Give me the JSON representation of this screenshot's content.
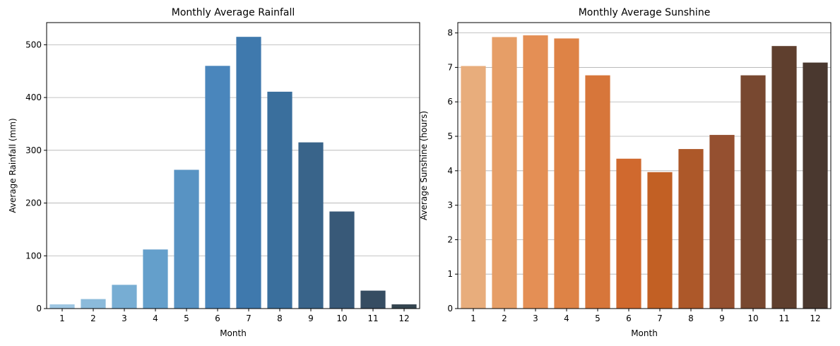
{
  "chart_data": [
    {
      "type": "bar",
      "title": "Monthly Average Rainfall",
      "xlabel": "Month",
      "ylabel": "Average Rainfall (mm)",
      "categories": [
        "1",
        "2",
        "3",
        "4",
        "5",
        "6",
        "7",
        "8",
        "9",
        "10",
        "11",
        "12"
      ],
      "values": [
        8,
        18,
        45,
        112,
        263,
        460,
        515,
        411,
        315,
        184,
        34,
        8
      ],
      "ylim": [
        0,
        542
      ],
      "yticks": [
        0,
        100,
        200,
        300,
        400,
        500
      ],
      "grid": "y",
      "colors": [
        "#9ec6e2",
        "#8bbada",
        "#77add3",
        "#649fcb",
        "#5893c3",
        "#4a86bc",
        "#3f79ad",
        "#3a6f9d",
        "#39648a",
        "#385978",
        "#364d62",
        "#354550"
      ]
    },
    {
      "type": "bar",
      "title": "Monthly Average Sunshine",
      "xlabel": "Month",
      "ylabel": "Average Sunshine (hours)",
      "categories": [
        "1",
        "2",
        "3",
        "4",
        "5",
        "6",
        "7",
        "8",
        "9",
        "10",
        "11",
        "12"
      ],
      "values": [
        7.04,
        7.88,
        7.93,
        7.84,
        6.77,
        4.35,
        3.96,
        4.63,
        5.04,
        6.77,
        7.62,
        7.14
      ],
      "ylim": [
        0,
        8.3
      ],
      "yticks": [
        0,
        1,
        2,
        3,
        4,
        5,
        6,
        7,
        8
      ],
      "grid": "y",
      "colors": [
        "#e8ad7c",
        "#e69e67",
        "#e48f55",
        "#de8346",
        "#d7763a",
        "#d0692e",
        "#c26024",
        "#ad5829",
        "#955030",
        "#784830",
        "#5f3f2e",
        "#4a382f"
      ]
    }
  ]
}
